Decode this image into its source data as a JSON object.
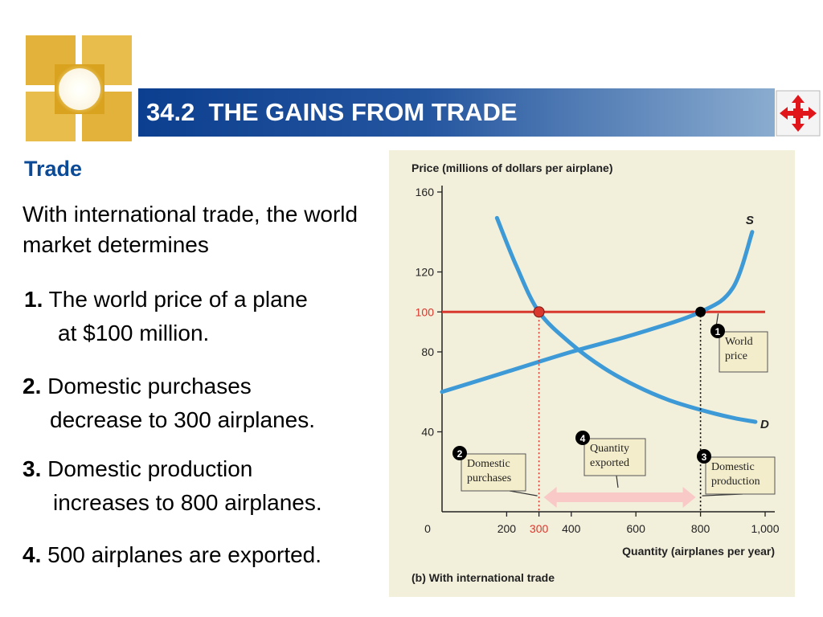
{
  "slide": {
    "title": "34.2  THE GAINS FROM TRADE",
    "heading": "Trade",
    "intro": "With international trade, the world market determines",
    "points": [
      {
        "num": "1.",
        "line1": "The world price of a plane",
        "line2": "at $100 million."
      },
      {
        "num": "2.",
        "line1": "Domestic purchases",
        "line2": "decrease to 300 airplanes."
      },
      {
        "num": "3.",
        "line1": "Domestic production",
        "line2": "increases to 800 airplanes."
      },
      {
        "num": "4.",
        "line1": "500 airplanes are exported.",
        "line2": ""
      }
    ],
    "icons": {
      "logo": "golden-squares-logo-icon",
      "nav": "red-four-way-arrow-icon"
    },
    "colors": {
      "title_bar_start": "#0c3f8f",
      "title_bar_end": "#8aaccf",
      "heading": "#0b4a96",
      "panel": "#f2efdb",
      "curve": "#3d9ad6",
      "world_price": "#d8382d",
      "export_arrow": "#f8c9c7"
    }
  },
  "chart_data": {
    "type": "line",
    "ylabel": "Price (millions of dollars per airplane)",
    "xlabel": "Quantity (airplanes per year)",
    "caption": "(b) With international trade",
    "y_ticks": [
      "160",
      "120",
      "100",
      "80",
      "40"
    ],
    "x_ticks": [
      "0",
      "200",
      "300",
      "400",
      "600",
      "800",
      "1,000"
    ],
    "xlim": [
      0,
      1000
    ],
    "ylim": [
      0,
      160
    ],
    "series": [
      {
        "name": "S",
        "points": [
          [
            0,
            60
          ],
          [
            200,
            70
          ],
          [
            400,
            80
          ],
          [
            600,
            89
          ],
          [
            800,
            100
          ],
          [
            900,
            112
          ],
          [
            960,
            140
          ]
        ]
      },
      {
        "name": "D",
        "points": [
          [
            170,
            147
          ],
          [
            230,
            123
          ],
          [
            300,
            100
          ],
          [
            400,
            84
          ],
          [
            500,
            72
          ],
          [
            600,
            63
          ],
          [
            700,
            56
          ],
          [
            800,
            51
          ],
          [
            900,
            47
          ],
          [
            970,
            45
          ]
        ]
      },
      {
        "name": "World price",
        "points": [
          [
            0,
            100
          ],
          [
            1000,
            100
          ]
        ]
      }
    ],
    "points": [
      {
        "x": 300,
        "y": 100,
        "color": "#d8382d"
      },
      {
        "x": 800,
        "y": 100,
        "color": "#000000"
      }
    ],
    "annotations": [
      {
        "num": "1",
        "lines": [
          "World",
          "price"
        ]
      },
      {
        "num": "2",
        "lines": [
          "Domestic",
          "purchases"
        ]
      },
      {
        "num": "3",
        "lines": [
          "Domestic",
          "production"
        ]
      },
      {
        "num": "4",
        "lines": [
          "Quantity",
          "exported"
        ]
      }
    ],
    "exports": {
      "from": 300,
      "to": 800,
      "value": 500
    },
    "grid": false
  }
}
